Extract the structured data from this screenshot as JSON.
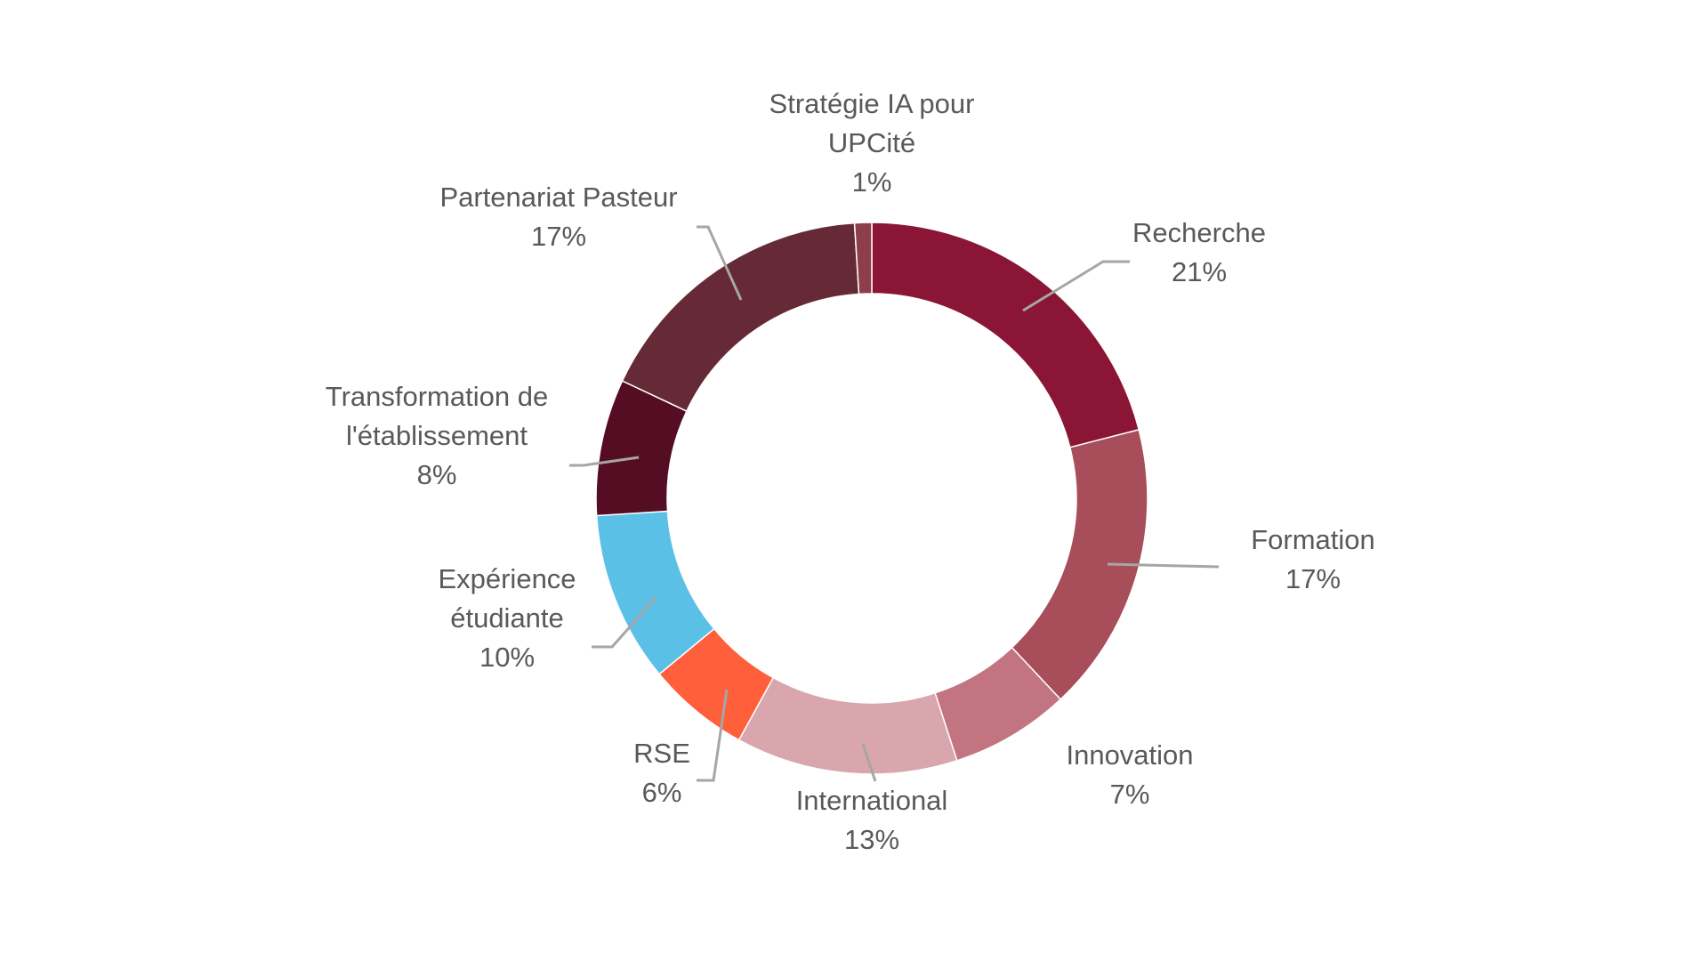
{
  "chart_data": {
    "type": "pie",
    "variant": "donut",
    "legend": "none",
    "slices": [
      {
        "name": "Recherche",
        "value": 21,
        "label": "21%",
        "color": "#8b1535"
      },
      {
        "name": "Formation",
        "value": 17,
        "label": "17%",
        "color": "#a84d5a"
      },
      {
        "name": "Innovation",
        "value": 7,
        "label": "7%",
        "color": "#c27581"
      },
      {
        "name": "International",
        "value": 13,
        "label": "13%",
        "color": "#d9a6ad"
      },
      {
        "name": "RSE",
        "value": 6,
        "label": "6%",
        "color": "#ff5f3b"
      },
      {
        "name": "Expérience étudiante",
        "value": 10,
        "label": "10%",
        "color": "#5bc0e6"
      },
      {
        "name": "Transformation de l'établissement",
        "value": 8,
        "label": "8%",
        "color": "#540d22"
      },
      {
        "name": "Partenariat Pasteur",
        "value": 17,
        "label": "17%",
        "color": "#652a35"
      },
      {
        "name": "Stratégie IA pour UPCité",
        "value": 1,
        "label": "1%",
        "color": "#8e3e4a"
      }
    ],
    "label_lines": [
      [
        "Recherche",
        "21%"
      ],
      [
        "Formation",
        "17%"
      ],
      [
        "Innovation",
        "7%"
      ],
      [
        "International",
        "13%"
      ],
      [
        "RSE",
        "6%"
      ],
      [
        "Expérience",
        "étudiante",
        "10%"
      ],
      [
        "Transformation de",
        "l'établissement",
        "8%"
      ],
      [
        "Partenariat Pasteur",
        "17%"
      ],
      [
        "Stratégie IA pour",
        "UPCité",
        "1%"
      ]
    ]
  }
}
